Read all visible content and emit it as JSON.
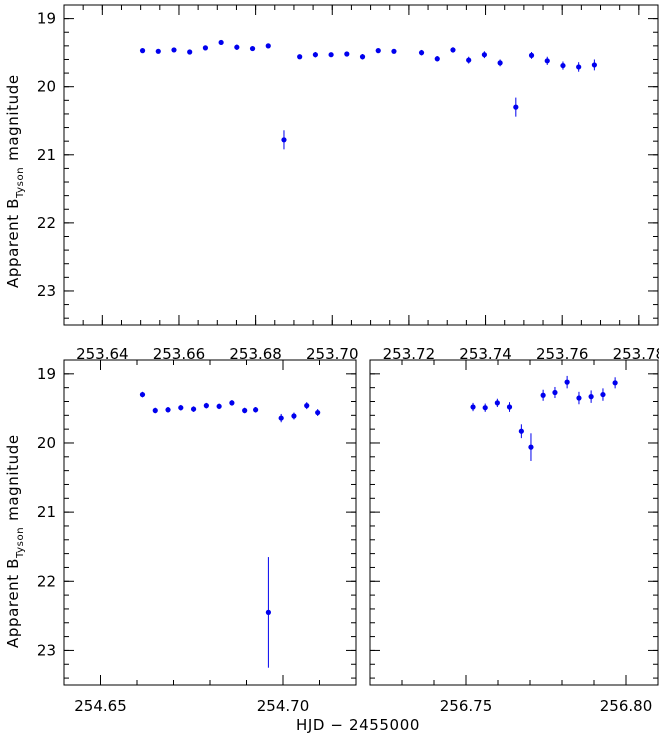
{
  "chart_data": [
    {
      "type": "scatter",
      "panel": "top",
      "ylabel": "Apparent B",
      "ylabel_sub": "Tyson",
      "ylabel_tail": "magnitude",
      "xlim": [
        253.63,
        253.785
      ],
      "ylim": [
        23.5,
        18.8
      ],
      "xticks": [
        253.64,
        253.66,
        253.68,
        253.7,
        253.72,
        253.74,
        253.76,
        253.78
      ],
      "xtick_labels": [
        "253.64",
        "253.66",
        "253.68",
        "253.70",
        "253.72",
        "253.74",
        "253.76",
        "253.78"
      ],
      "yticks": [
        19,
        20,
        21,
        22,
        23
      ],
      "ytick_labels": [
        "19",
        "20",
        "21",
        "22",
        "23"
      ],
      "points": [
        {
          "x": 253.6505,
          "y": 19.47,
          "e": 0.03
        },
        {
          "x": 253.6546,
          "y": 19.48,
          "e": 0.03
        },
        {
          "x": 253.6587,
          "y": 19.46,
          "e": 0.03
        },
        {
          "x": 253.6628,
          "y": 19.49,
          "e": 0.03
        },
        {
          "x": 253.6669,
          "y": 19.43,
          "e": 0.03
        },
        {
          "x": 253.671,
          "y": 19.35,
          "e": 0.03
        },
        {
          "x": 253.6751,
          "y": 19.42,
          "e": 0.04
        },
        {
          "x": 253.6792,
          "y": 19.44,
          "e": 0.03
        },
        {
          "x": 253.6833,
          "y": 19.4,
          "e": 0.03
        },
        {
          "x": 253.6874,
          "y": 20.78,
          "e": 0.14
        },
        {
          "x": 253.6915,
          "y": 19.56,
          "e": 0.03
        },
        {
          "x": 253.6956,
          "y": 19.53,
          "e": 0.04
        },
        {
          "x": 253.6997,
          "y": 19.53,
          "e": 0.03
        },
        {
          "x": 253.7038,
          "y": 19.52,
          "e": 0.03
        },
        {
          "x": 253.7079,
          "y": 19.56,
          "e": 0.04
        },
        {
          "x": 253.712,
          "y": 19.47,
          "e": 0.03
        },
        {
          "x": 253.7161,
          "y": 19.48,
          "e": 0.03
        },
        {
          "x": 253.7233,
          "y": 19.5,
          "e": 0.04
        },
        {
          "x": 253.7274,
          "y": 19.59,
          "e": 0.04
        },
        {
          "x": 253.7315,
          "y": 19.46,
          "e": 0.04
        },
        {
          "x": 253.7356,
          "y": 19.61,
          "e": 0.05
        },
        {
          "x": 253.7397,
          "y": 19.53,
          "e": 0.05
        },
        {
          "x": 253.7438,
          "y": 19.65,
          "e": 0.05
        },
        {
          "x": 253.7479,
          "y": 20.3,
          "e": 0.14
        },
        {
          "x": 253.752,
          "y": 19.54,
          "e": 0.05
        },
        {
          "x": 253.7561,
          "y": 19.62,
          "e": 0.06
        },
        {
          "x": 253.7602,
          "y": 19.69,
          "e": 0.06
        },
        {
          "x": 253.7643,
          "y": 19.71,
          "e": 0.07
        },
        {
          "x": 253.7684,
          "y": 19.68,
          "e": 0.08
        }
      ]
    },
    {
      "type": "scatter",
      "panel": "bottom-left",
      "ylabel": "Apparent B",
      "ylabel_sub": "Tyson",
      "ylabel_tail": "magnitude",
      "xlim": [
        254.64,
        254.72
      ],
      "ylim": [
        23.5,
        18.8
      ],
      "xticks": [
        254.65,
        254.7
      ],
      "xtick_labels": [
        "254.65",
        "254.70"
      ],
      "yticks": [
        19,
        20,
        21,
        22,
        23
      ],
      "ytick_labels": [
        "19",
        "20",
        "21",
        "22",
        "23"
      ],
      "points": [
        {
          "x": 254.6615,
          "y": 19.3,
          "e": 0.04
        },
        {
          "x": 254.665,
          "y": 19.53,
          "e": 0.04
        },
        {
          "x": 254.6685,
          "y": 19.52,
          "e": 0.04
        },
        {
          "x": 254.672,
          "y": 19.49,
          "e": 0.04
        },
        {
          "x": 254.6755,
          "y": 19.51,
          "e": 0.04
        },
        {
          "x": 254.679,
          "y": 19.46,
          "e": 0.04
        },
        {
          "x": 254.6825,
          "y": 19.47,
          "e": 0.04
        },
        {
          "x": 254.686,
          "y": 19.42,
          "e": 0.04
        },
        {
          "x": 254.6895,
          "y": 19.53,
          "e": 0.04
        },
        {
          "x": 254.6925,
          "y": 19.52,
          "e": 0.04
        },
        {
          "x": 254.696,
          "y": 22.45,
          "e": 0.8
        },
        {
          "x": 254.6995,
          "y": 19.64,
          "e": 0.06
        },
        {
          "x": 254.703,
          "y": 19.61,
          "e": 0.05
        },
        {
          "x": 254.7065,
          "y": 19.46,
          "e": 0.05
        },
        {
          "x": 254.7095,
          "y": 19.56,
          "e": 0.05
        }
      ]
    },
    {
      "type": "scatter",
      "panel": "bottom-right",
      "xlabel": "HJD − 2455000",
      "xlim": [
        256.72,
        256.81
      ],
      "ylim": [
        23.5,
        18.8
      ],
      "xticks": [
        256.75,
        256.8
      ],
      "xtick_labels": [
        "256.75",
        "256.80"
      ],
      "yticks": [
        19,
        20,
        21,
        22,
        23
      ],
      "ytick_labels": [],
      "points": [
        {
          "x": 256.7522,
          "y": 19.48,
          "e": 0.06
        },
        {
          "x": 256.756,
          "y": 19.49,
          "e": 0.06
        },
        {
          "x": 256.7598,
          "y": 19.42,
          "e": 0.06
        },
        {
          "x": 256.7636,
          "y": 19.48,
          "e": 0.07
        },
        {
          "x": 256.7673,
          "y": 19.83,
          "e": 0.1
        },
        {
          "x": 256.7703,
          "y": 20.06,
          "e": 0.2
        },
        {
          "x": 256.7741,
          "y": 19.31,
          "e": 0.08
        },
        {
          "x": 256.7778,
          "y": 19.27,
          "e": 0.08
        },
        {
          "x": 256.7816,
          "y": 19.12,
          "e": 0.09
        },
        {
          "x": 256.7853,
          "y": 19.35,
          "e": 0.09
        },
        {
          "x": 256.7891,
          "y": 19.33,
          "e": 0.09
        },
        {
          "x": 256.7928,
          "y": 19.3,
          "e": 0.09
        },
        {
          "x": 256.7966,
          "y": 19.13,
          "e": 0.08
        }
      ]
    }
  ]
}
